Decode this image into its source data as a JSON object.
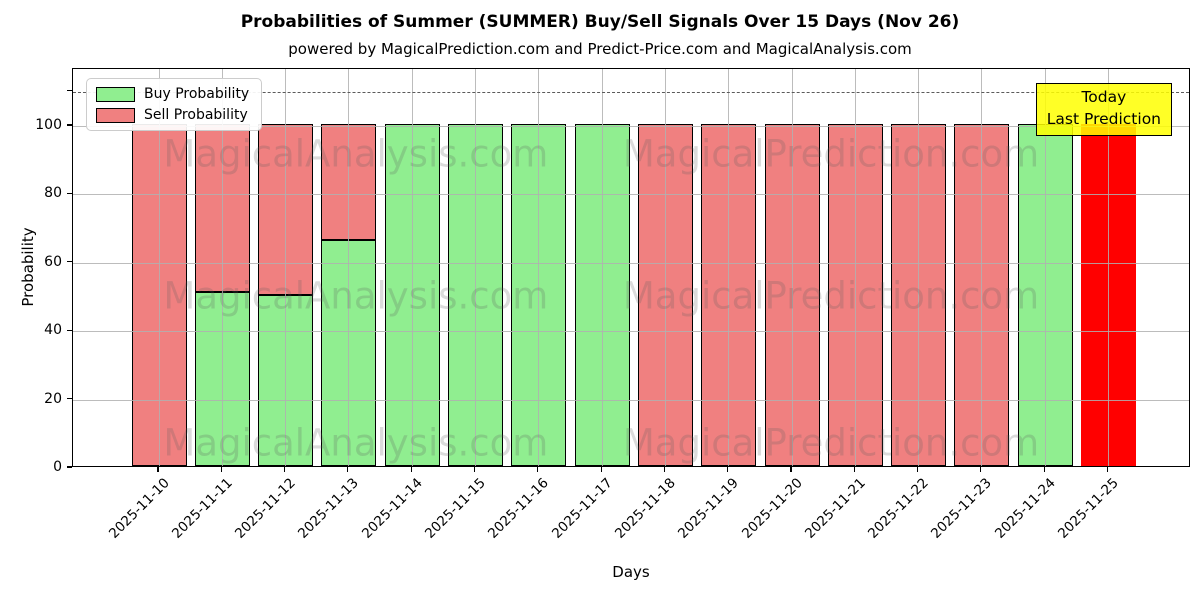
{
  "chart_data": {
    "type": "bar",
    "stacked": true,
    "title": "Probabilities of Summer (SUMMER) Buy/Sell Signals Over 15 Days (Nov 26)",
    "subtitle": "powered by MagicalPrediction.com and Predict-Price.com and MagicalAnalysis.com",
    "xlabel": "Days",
    "ylabel": "Probability",
    "ylim": [
      0,
      116.7
    ],
    "yticks": [
      0,
      20,
      40,
      60,
      80,
      100
    ],
    "extra_unlabeled_ytick": 110,
    "dashed_line_y": 110,
    "grid": true,
    "legend_position": "upper-left",
    "categories": [
      "2025-11-10",
      "2025-11-11",
      "2025-11-12",
      "2025-11-13",
      "2025-11-14",
      "2025-11-15",
      "2025-11-16",
      "2025-11-17",
      "2025-11-18",
      "2025-11-19",
      "2025-11-20",
      "2025-11-21",
      "2025-11-22",
      "2025-11-23",
      "2025-11-24",
      "2025-11-25"
    ],
    "series": [
      {
        "name": "Buy Probability",
        "color": "#90EE90",
        "values": [
          0,
          51,
          50,
          66,
          100,
          100,
          100,
          100,
          0,
          0,
          0,
          0,
          0,
          0,
          100,
          0
        ]
      },
      {
        "name": "Sell Probability",
        "color": "#F08080",
        "values": [
          100,
          49,
          50,
          34,
          0,
          0,
          0,
          0,
          100,
          100,
          100,
          100,
          100,
          100,
          0,
          0
        ]
      }
    ],
    "today_bar": {
      "index": 15,
      "value": 100,
      "color": "#FF0000"
    },
    "bar_edge_color": "#000000",
    "annotation": {
      "lines": [
        "Today",
        "Last Prediction"
      ],
      "bg_color": "#FFFF00",
      "border_color": "#000000"
    },
    "watermarks": {
      "texts": [
        "MagicalAnalysis.com",
        "MagicalPrediction.com"
      ],
      "row_fracs": [
        0.213,
        0.569,
        0.937
      ],
      "col_fracs": [
        0.253,
        0.678
      ]
    }
  }
}
